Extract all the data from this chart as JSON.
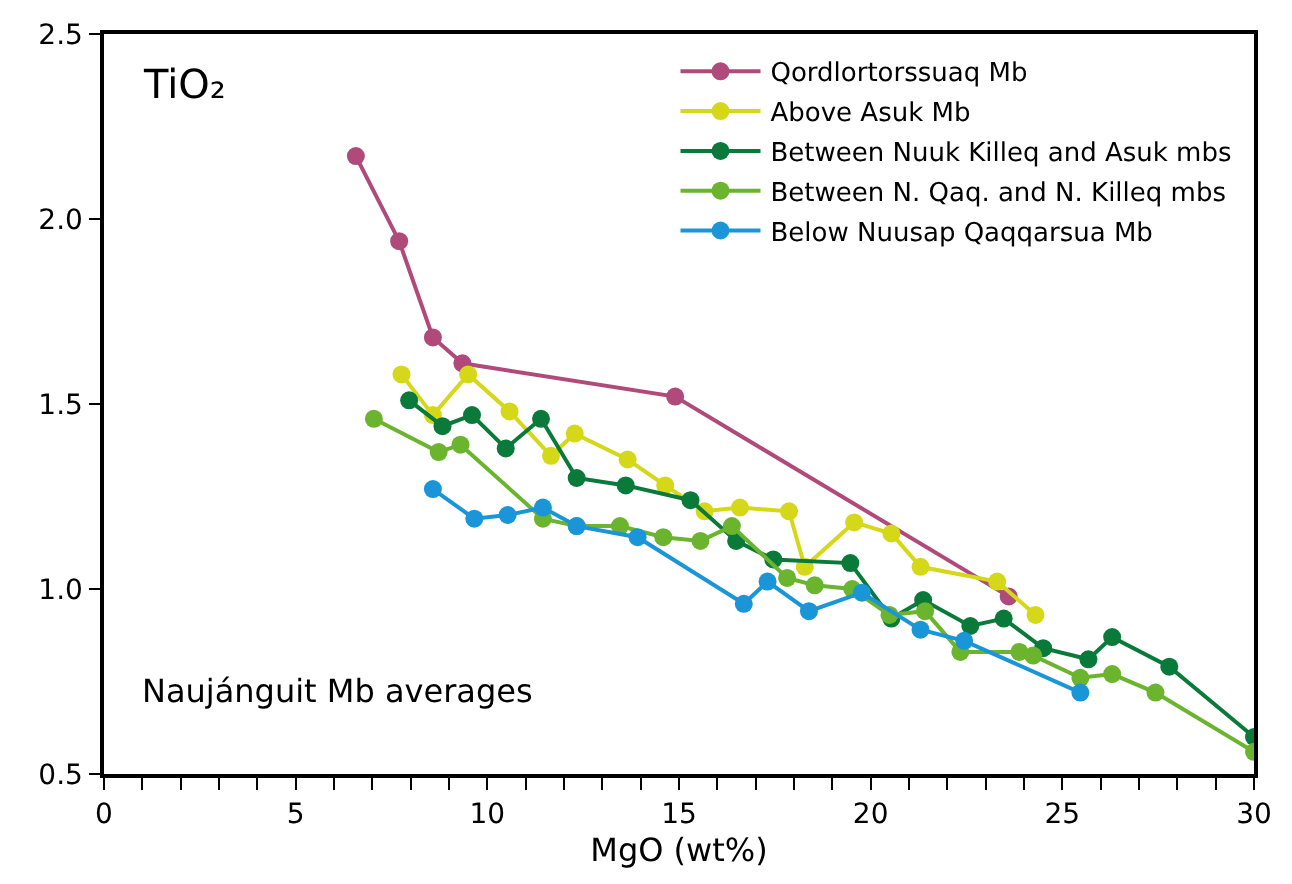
{
  "chart_data": {
    "type": "line",
    "xlabel": "MgO (wt%)",
    "annotations": [
      "TiO₂",
      "Naujánguit Mb averages"
    ],
    "xlim": [
      0,
      30
    ],
    "ylim": [
      0.5,
      2.5
    ],
    "xticks": [
      0,
      {
        "value": 1,
        "label": null
      },
      {
        "value": 2,
        "label": null
      },
      {
        "value": 3,
        "label": null
      },
      {
        "value": 4,
        "label": null
      },
      5,
      {
        "value": 6,
        "label": null
      },
      {
        "value": 7,
        "label": null
      },
      {
        "value": 8,
        "label": null
      },
      {
        "value": 9,
        "label": null
      },
      10,
      {
        "value": 11,
        "label": null
      },
      {
        "value": 12,
        "label": null
      },
      {
        "value": 13,
        "label": null
      },
      {
        "value": 14,
        "label": null
      },
      15,
      {
        "value": 16,
        "label": null
      },
      {
        "value": 17,
        "label": null
      },
      {
        "value": 18,
        "label": null
      },
      {
        "value": 19,
        "label": null
      },
      20,
      {
        "value": 21,
        "label": null
      },
      {
        "value": 22,
        "label": null
      },
      {
        "value": 23,
        "label": null
      },
      {
        "value": 24,
        "label": null
      },
      25,
      {
        "value": 26,
        "label": null
      },
      {
        "value": 27,
        "label": null
      },
      {
        "value": 28,
        "label": null
      },
      {
        "value": 29,
        "label": null
      },
      30
    ],
    "yticks": [
      {
        "value": 0.5,
        "label": "0.5"
      },
      {
        "value": 1.0,
        "label": "1.0"
      },
      {
        "value": 1.5,
        "label": "1.5"
      },
      {
        "value": 2.0,
        "label": "2.0"
      },
      {
        "value": 2.5,
        "label": "2.5"
      }
    ],
    "legend": "top right",
    "marker": "circle",
    "line_style": "solid",
    "series": [
      {
        "name": "Qordlortorssuaq Mb",
        "color": "#b04a7a",
        "x": [
          6.57,
          7.7,
          8.58,
          9.35,
          14.9,
          23.6
        ],
        "values": [
          2.17,
          1.94,
          1.68,
          1.61,
          1.52,
          0.98
        ]
      },
      {
        "name": "Above Asuk Mb",
        "color": "#d4d818",
        "x": [
          7.76,
          8.58,
          9.5,
          10.58,
          11.66,
          12.28,
          13.66,
          14.64,
          15.67,
          16.59,
          17.87,
          18.28,
          19.57,
          20.54,
          21.3,
          23.3,
          24.3
        ],
        "values": [
          1.58,
          1.47,
          1.58,
          1.48,
          1.36,
          1.42,
          1.35,
          1.28,
          1.21,
          1.22,
          1.21,
          1.06,
          1.18,
          1.15,
          1.06,
          1.02,
          0.93
        ]
      },
      {
        "name": "Between Nuuk Killeq and Asuk mbs",
        "color": "#0a7a3a",
        "x": [
          7.96,
          8.83,
          9.6,
          10.48,
          11.4,
          12.33,
          13.61,
          15.3,
          16.49,
          17.46,
          19.47,
          20.54,
          21.37,
          22.6,
          23.47,
          24.5,
          25.68,
          26.3,
          27.79,
          30.0
        ],
        "values": [
          1.51,
          1.44,
          1.47,
          1.38,
          1.46,
          1.3,
          1.28,
          1.24,
          1.13,
          1.08,
          1.07,
          0.92,
          0.97,
          0.9,
          0.92,
          0.84,
          0.81,
          0.87,
          0.79,
          0.6
        ]
      },
      {
        "name": "Between N. Qaq. and N. Killeq mbs",
        "color": "#6ab42e",
        "x": [
          7.04,
          8.73,
          9.3,
          11.45,
          12.33,
          13.46,
          14.59,
          15.56,
          16.38,
          17.82,
          18.54,
          19.52,
          20.49,
          21.42,
          22.34,
          23.88,
          24.24,
          25.47,
          26.3,
          27.43,
          30.0
        ],
        "values": [
          1.46,
          1.37,
          1.39,
          1.19,
          1.17,
          1.17,
          1.14,
          1.13,
          1.17,
          1.03,
          1.01,
          1.0,
          0.93,
          0.94,
          0.83,
          0.83,
          0.82,
          0.76,
          0.77,
          0.72,
          0.56
        ]
      },
      {
        "name": "Below Nuusap Qaqqarsua Mb",
        "color": "#1a96d8",
        "x": [
          8.58,
          9.66,
          10.53,
          11.45,
          12.33,
          13.92,
          16.69,
          17.31,
          18.39,
          19.77,
          21.3,
          22.44,
          25.47
        ],
        "values": [
          1.27,
          1.19,
          1.2,
          1.22,
          1.17,
          1.14,
          0.96,
          1.02,
          0.94,
          0.99,
          0.89,
          0.86,
          0.72
        ]
      }
    ]
  }
}
